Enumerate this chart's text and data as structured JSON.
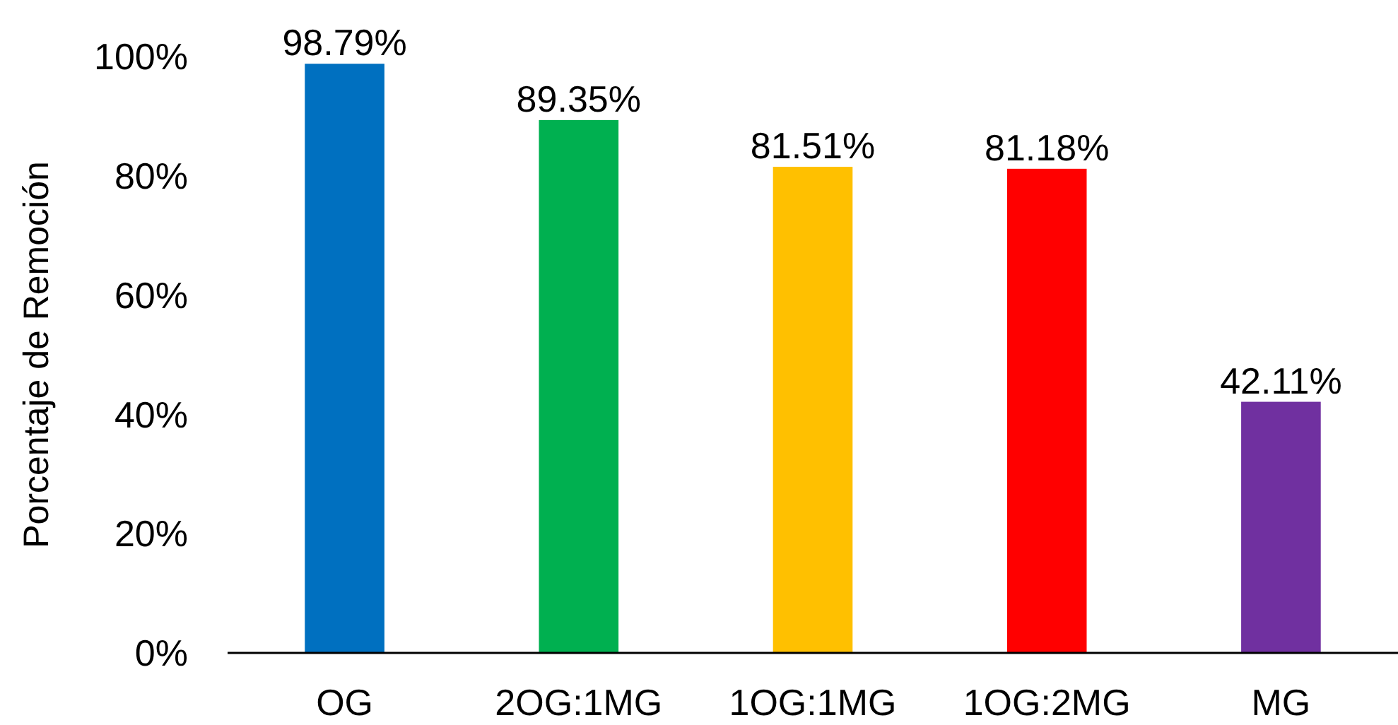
{
  "chart_data": {
    "type": "bar",
    "ylabel": "Porcentaje de Remoción",
    "categories": [
      "OG",
      "2OG:1MG",
      "1OG:1MG",
      "1OG:2MG",
      "MG"
    ],
    "values": [
      98.79,
      89.35,
      81.51,
      81.18,
      42.11
    ],
    "colors": [
      "#0070c0",
      "#00b050",
      "#ffc000",
      "#ff0000",
      "#7030a0"
    ],
    "value_labels": [
      "98.79%",
      "89.35%",
      "81.51%",
      "81.18%",
      "42.11%"
    ],
    "ylim": [
      0,
      100
    ],
    "yticks": [
      {
        "value": 0,
        "label": "0%"
      },
      {
        "value": 20,
        "label": "20%"
      },
      {
        "value": 40,
        "label": "40%"
      },
      {
        "value": 60,
        "label": "60%"
      },
      {
        "value": 80,
        "label": "80%"
      },
      {
        "value": 100,
        "label": "100%"
      }
    ],
    "grid": false
  }
}
